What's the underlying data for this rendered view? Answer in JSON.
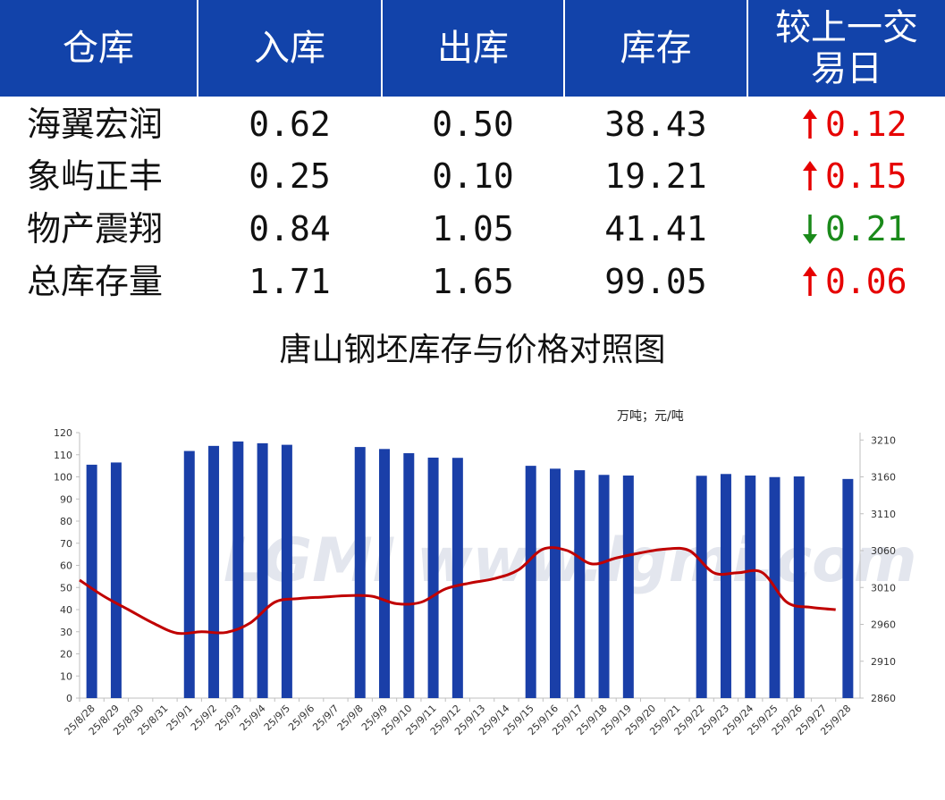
{
  "table": {
    "headers": [
      "仓库",
      "入库",
      "出库",
      "库存",
      "较上一交",
      "易日"
    ],
    "rows": [
      {
        "name": "海翼宏润",
        "in": "0.62",
        "out": "0.50",
        "stock": "38.43",
        "change": "0.12",
        "direction": "up"
      },
      {
        "name": "象屿正丰",
        "in": "0.25",
        "out": "0.10",
        "stock": "19.21",
        "change": "0.15",
        "direction": "up"
      },
      {
        "name": "物产震翔",
        "in": "0.84",
        "out": "1.05",
        "stock": "41.41",
        "change": "0.21",
        "direction": "down"
      },
      {
        "name": "总库存量",
        "in": "1.71",
        "out": "1.65",
        "stock": "99.05",
        "change": "0.06",
        "direction": "up"
      }
    ],
    "colors": {
      "header_bg": "#1243aa",
      "up": "#e60000",
      "down": "#1a8a1a"
    }
  },
  "chart_data": {
    "type": "bar",
    "title": "唐山钢坯库存与价格对照图",
    "unit_label": "万吨；元/吨",
    "categories": [
      "25/8/28",
      "25/8/29",
      "25/8/30",
      "25/8/31",
      "25/9/1",
      "25/9/2",
      "25/9/3",
      "25/9/4",
      "25/9/5",
      "25/9/6",
      "25/9/7",
      "25/9/8",
      "25/9/9",
      "25/9/10",
      "25/9/11",
      "25/9/12",
      "25/9/13",
      "25/9/14",
      "25/9/15",
      "25/9/16",
      "25/9/17",
      "25/9/18",
      "25/9/19",
      "25/9/20",
      "25/9/21",
      "25/9/22",
      "25/9/23",
      "25/9/24",
      "25/9/25",
      "25/9/26",
      "25/9/27",
      "25/9/28"
    ],
    "series": [
      {
        "type": "bar",
        "axis": "left",
        "color": "#1a3fa8",
        "values": [
          105.5,
          106.5,
          null,
          null,
          111.7,
          114,
          116,
          115.2,
          114.5,
          null,
          null,
          113.5,
          112.6,
          110.7,
          108.7,
          108.6,
          null,
          null,
          105,
          103.7,
          103,
          100.9,
          100.6,
          null,
          null,
          100.5,
          101.3,
          100.6,
          99.9,
          100.2,
          null,
          99.05
        ]
      },
      {
        "type": "line",
        "axis": "right",
        "color": "#c00000",
        "values": [
          3020,
          2998,
          2980,
          2962,
          2948,
          2950,
          2949,
          2962,
          2990,
          2995,
          2997,
          2999,
          2998,
          2988,
          2990,
          3008,
          3016,
          3022,
          3034,
          3062,
          3060,
          3042,
          3050,
          3057,
          3062,
          3060,
          3030,
          3030,
          3030,
          2990,
          2983,
          2980
        ]
      }
    ],
    "y_left": {
      "min": 0,
      "max": 120,
      "ticks": [
        0,
        10,
        20,
        30,
        40,
        50,
        60,
        70,
        80,
        90,
        100,
        110,
        120
      ]
    },
    "y_right": {
      "min": 2860,
      "max": 3220,
      "ticks": [
        2860,
        2910,
        2960,
        3010,
        3060,
        3110,
        3160,
        3210
      ]
    },
    "grid": false,
    "watermark": "LGMI  www.lgmi.com"
  }
}
